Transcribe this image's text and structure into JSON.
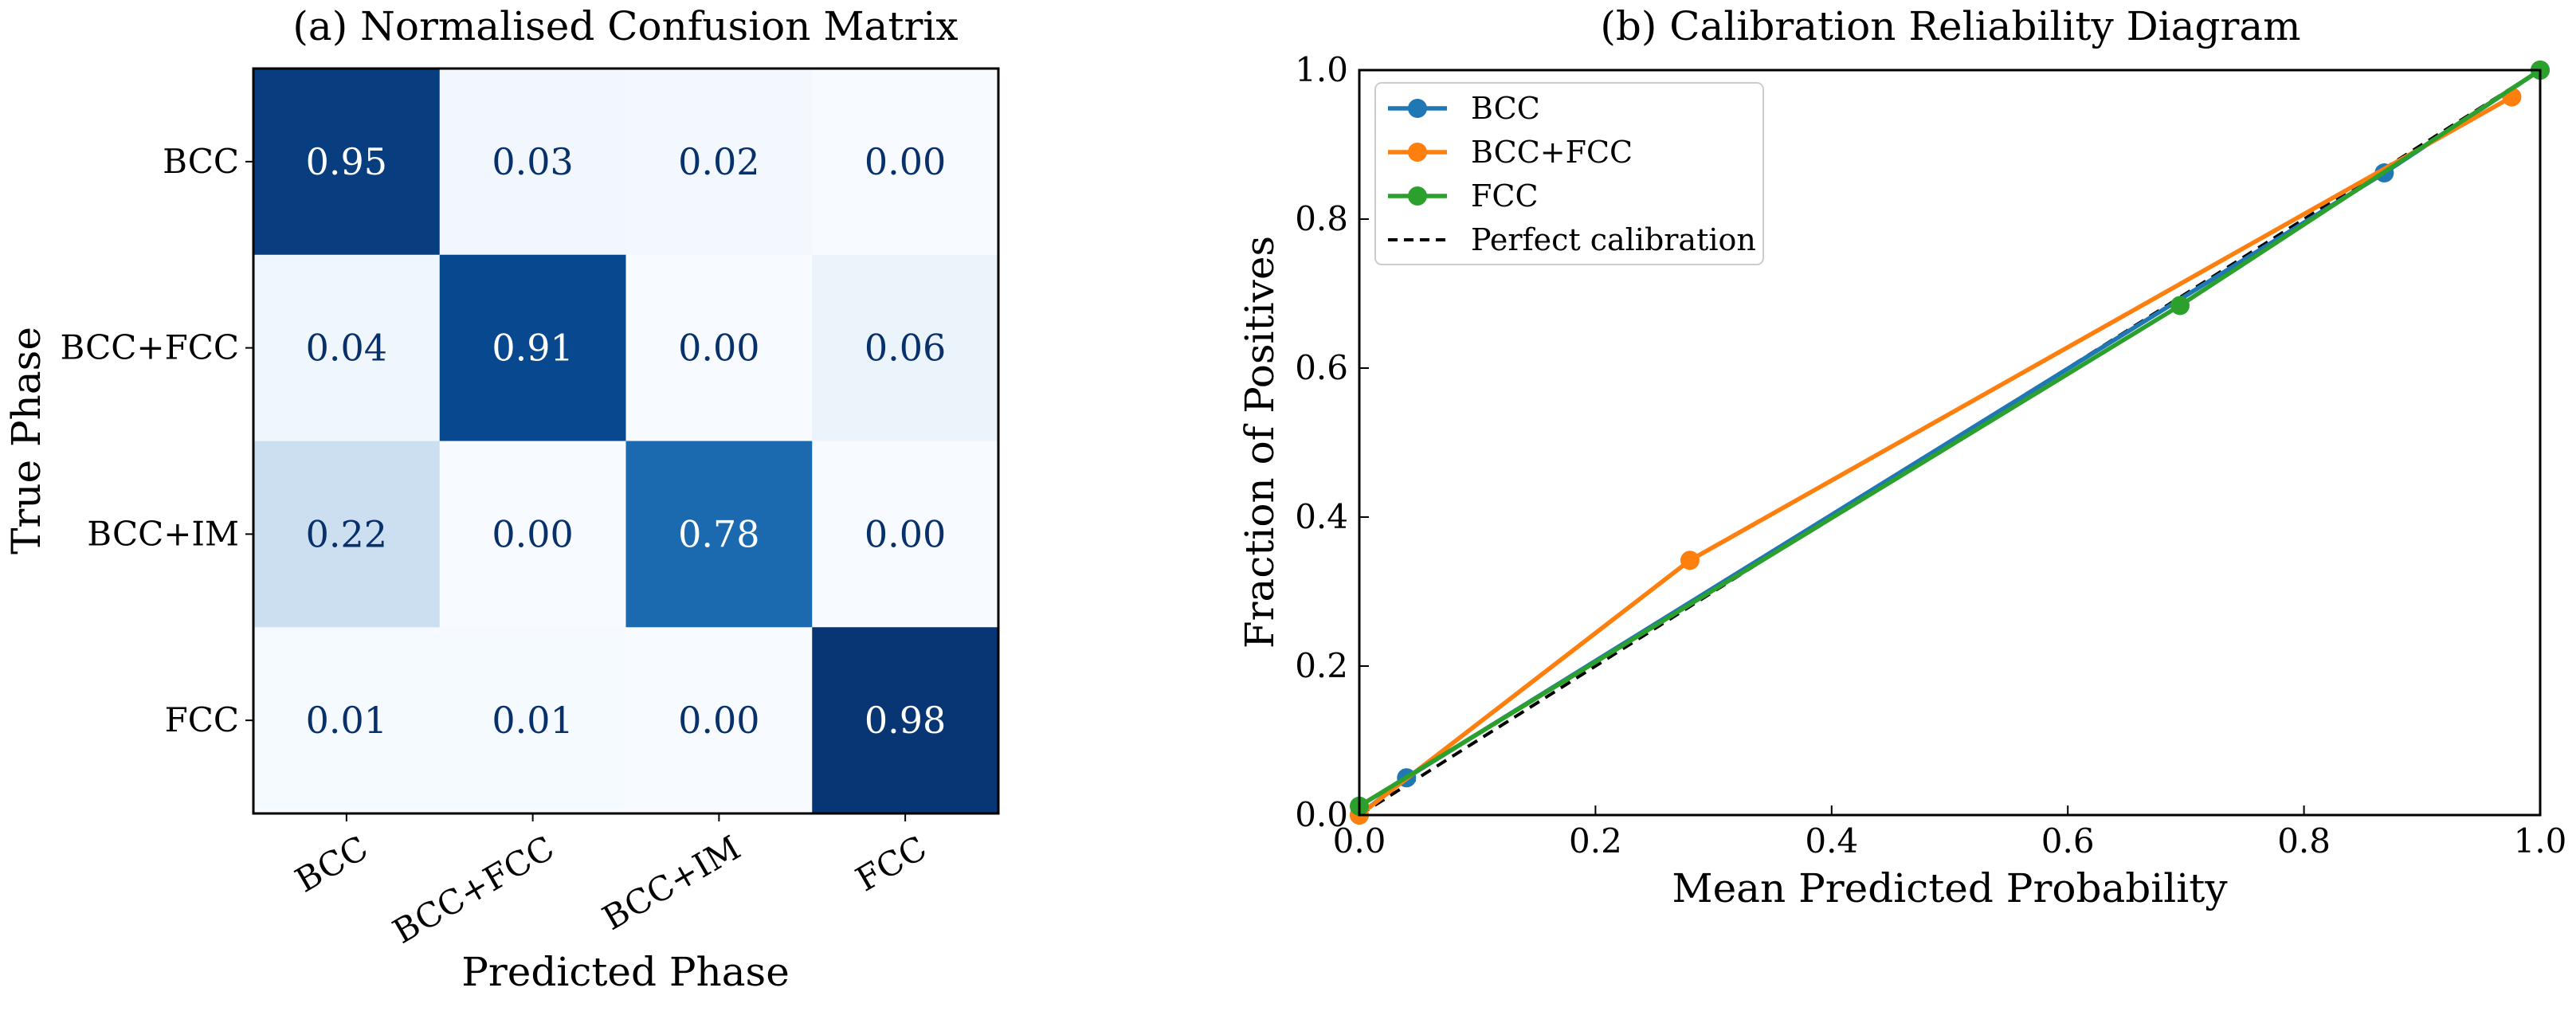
{
  "chart_data": [
    {
      "type": "heatmap",
      "title": "(a) Normalised Confusion Matrix",
      "xlabel": "Predicted Phase",
      "ylabel": "True Phase",
      "x_categories": [
        "BCC",
        "BCC+FCC",
        "BCC+IM",
        "FCC"
      ],
      "y_categories": [
        "BCC",
        "BCC+FCC",
        "BCC+IM",
        "FCC"
      ],
      "values": [
        [
          0.95,
          0.03,
          0.02,
          0.0
        ],
        [
          0.04,
          0.91,
          0.0,
          0.06
        ],
        [
          0.22,
          0.0,
          0.78,
          0.0
        ],
        [
          0.01,
          0.01,
          0.0,
          0.98
        ]
      ],
      "value_labels": [
        [
          "0.95",
          "0.03",
          "0.02",
          "0.00"
        ],
        [
          "0.04",
          "0.91",
          "0.00",
          "0.06"
        ],
        [
          "0.22",
          "0.00",
          "0.78",
          "0.00"
        ],
        [
          "0.01",
          "0.01",
          "0.00",
          "0.98"
        ]
      ],
      "colormap": "Blues",
      "vrange": [
        0,
        1
      ]
    },
    {
      "type": "line",
      "title": "(b) Calibration Reliability Diagram",
      "xlabel": "Mean Predicted Probability",
      "ylabel": "Fraction of Positives",
      "xlim": [
        0,
        1
      ],
      "ylim": [
        0,
        1
      ],
      "xticks": [
        "0.0",
        "0.2",
        "0.4",
        "0.6",
        "0.8",
        "1.0"
      ],
      "yticks": [
        "0.0",
        "0.2",
        "0.4",
        "0.6",
        "0.8",
        "1.0"
      ],
      "legend_position": "top-left",
      "series": [
        {
          "name": "BCC",
          "color": "#1f77b4",
          "x": [
            0.0,
            0.04,
            0.868,
            1.0
          ],
          "y": [
            0.0,
            0.05,
            0.862,
            1.0
          ]
        },
        {
          "name": "BCC+FCC",
          "color": "#ff7f0e",
          "x": [
            0.0,
            0.28,
            0.976
          ],
          "y": [
            0.0,
            0.342,
            0.964
          ]
        },
        {
          "name": "FCC",
          "color": "#2ca02c",
          "x": [
            0.0,
            0.695,
            1.0
          ],
          "y": [
            0.012,
            0.684,
            1.0
          ]
        }
      ],
      "reference": {
        "name": "Perfect calibration",
        "color": "#000000",
        "style": "dashed",
        "x": [
          0,
          1
        ],
        "y": [
          0,
          1
        ]
      }
    }
  ]
}
